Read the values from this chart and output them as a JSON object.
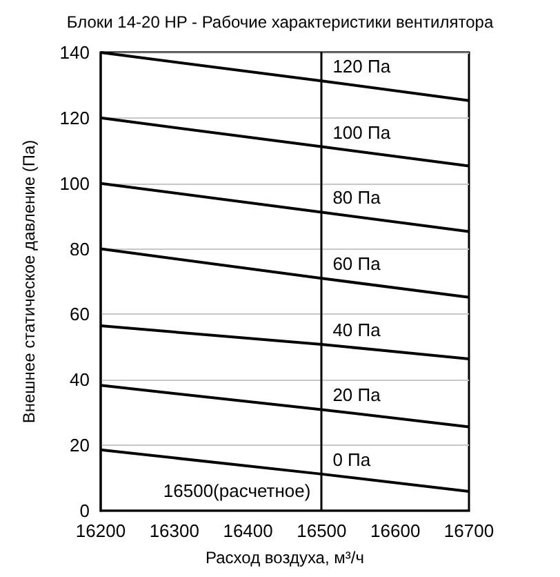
{
  "chart_data": {
    "type": "line",
    "title": "Блоки 14-20 HP - Рабочие характеристики вентилятора",
    "xlabel": "Расход воздуха, м³/ч",
    "ylabel": "Внешнее статическое давление (Па)",
    "x": [
      16200,
      16500,
      16700
    ],
    "series": [
      {
        "name": "120 Па",
        "color": "#000000",
        "values": [
          140,
          131.3,
          125.3
        ]
      },
      {
        "name": "100 Па",
        "color": "#000000",
        "values": [
          120,
          111.2,
          105.3
        ]
      },
      {
        "name": "80 Па",
        "color": "#000000",
        "values": [
          100,
          91.2,
          85.3
        ]
      },
      {
        "name": "60 Па",
        "color": "#000000",
        "values": [
          80,
          71,
          65.2
        ]
      },
      {
        "name": "40 Па",
        "color": "#000000",
        "values": [
          56.5,
          50.8,
          46.4
        ]
      },
      {
        "name": "20 Па",
        "color": "#000000",
        "values": [
          38.3,
          30.9,
          25.6
        ]
      },
      {
        "name": "0 Па",
        "color": "#000000",
        "values": [
          18.6,
          11.2,
          5.9
        ]
      }
    ],
    "xlim": [
      16200,
      16700
    ],
    "xticks": [
      16200,
      16300,
      16400,
      16500,
      16600,
      16700
    ],
    "ylim": [
      0,
      140
    ],
    "yticks": [
      0,
      20,
      40,
      60,
      80,
      100,
      120,
      140
    ],
    "ref_lines": [
      {
        "axis": "x",
        "value": 16500,
        "label": "16500(расчетное)",
        "color": "#000000"
      }
    ],
    "grid": "y",
    "legend": false,
    "marker": "none",
    "line_style": "solid"
  }
}
